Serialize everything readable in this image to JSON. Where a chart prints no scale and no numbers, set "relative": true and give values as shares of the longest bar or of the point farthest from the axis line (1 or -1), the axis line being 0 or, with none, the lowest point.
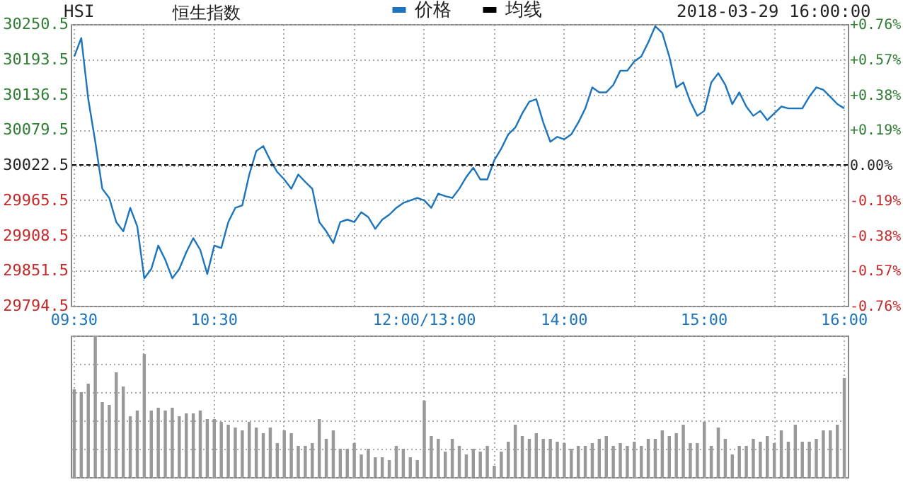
{
  "chart_data": [
    {
      "type": "line",
      "title": "恒生指数",
      "annotations": [
        "HSI",
        "2018-03-29 16:00:00"
      ],
      "categories": [
        "09:30",
        null,
        null,
        null,
        null,
        null,
        null,
        null,
        null,
        null,
        null,
        null,
        null,
        null,
        null,
        null,
        null,
        null,
        null,
        null,
        "10:30",
        null,
        null,
        null,
        null,
        null,
        null,
        null,
        null,
        null,
        null,
        null,
        null,
        null,
        null,
        null,
        null,
        null,
        null,
        null,
        null,
        null,
        null,
        null,
        null,
        null,
        null,
        null,
        null,
        null,
        "12:00/13:00",
        null,
        null,
        null,
        null,
        null,
        null,
        null,
        null,
        null,
        null,
        null,
        null,
        null,
        null,
        null,
        null,
        null,
        null,
        null,
        "14:00",
        null,
        null,
        null,
        null,
        null,
        null,
        null,
        null,
        null,
        null,
        null,
        null,
        null,
        null,
        null,
        null,
        null,
        null,
        null,
        "15:00",
        null,
        null,
        null,
        null,
        null,
        null,
        null,
        null,
        null,
        null,
        null,
        null,
        null,
        null,
        null,
        null,
        null,
        null,
        null,
        "16:00"
      ],
      "series": [
        {
          "name": "价格",
          "color": "#1c75bc",
          "values": [
            30198,
            30228,
            30129,
            30060,
            29984,
            29969,
            29930,
            29915,
            29953,
            29923,
            29839,
            29854,
            29892,
            29869,
            29839,
            29854,
            29881,
            29904,
            29885,
            29846,
            29892,
            29888,
            29930,
            29953,
            29957,
            30007,
            30045,
            30053,
            30030,
            30011,
            29999,
            29984,
            30007,
            29995,
            29984,
            29930,
            29915,
            29896,
            29930,
            29934,
            29930,
            29946,
            29938,
            29919,
            29934,
            29942,
            29953,
            29961,
            29965,
            29969,
            29965,
            29953,
            29976,
            29972,
            29969,
            29984,
            30003,
            30018,
            29999,
            29999,
            30030,
            30049,
            30072,
            30083,
            30106,
            30125,
            30129,
            30091,
            30060,
            30068,
            30064,
            30072,
            30091,
            30114,
            30148,
            30140,
            30140,
            30152,
            30175,
            30175,
            30190,
            30198,
            30221,
            30247,
            30236,
            30198,
            30148,
            30156,
            30125,
            30102,
            30110,
            30156,
            30171,
            30152,
            30121,
            30140,
            30117,
            30102,
            30110,
            30095,
            30106,
            30117,
            30114,
            30114,
            30114,
            30133,
            30148,
            30144,
            30133,
            30121,
            30114
          ]
        },
        {
          "name": "均线",
          "color": "#000000",
          "values": [
            null,
            null,
            null,
            null,
            null,
            null,
            null,
            null,
            null,
            null,
            null,
            null,
            null,
            null,
            null,
            null,
            null,
            null,
            null,
            null,
            null,
            null,
            null,
            null,
            null,
            null,
            null,
            null,
            null,
            null,
            null,
            null,
            null,
            null,
            null,
            null,
            null,
            null,
            null,
            null,
            null,
            null,
            null,
            null,
            null,
            null,
            null,
            null,
            null,
            null,
            null,
            null,
            null,
            null,
            null,
            null,
            null,
            null,
            null,
            null,
            null,
            null,
            null,
            null,
            null,
            null,
            null,
            null,
            null,
            null,
            null,
            null,
            null,
            null,
            null,
            null,
            null,
            null,
            null,
            null,
            null,
            null,
            null,
            null,
            null,
            null,
            null,
            null,
            null,
            null,
            null,
            null,
            null,
            null,
            null,
            null,
            null,
            null,
            null,
            null,
            null,
            null,
            null,
            null,
            null,
            null,
            null,
            null,
            null,
            null,
            null
          ]
        }
      ],
      "ylim": [
        29794.5,
        30250.5
      ],
      "yticks": [
        {
          "value": 29794.5,
          "label": "29794.5"
        },
        {
          "value": 29851.5,
          "label": "29851.5"
        },
        {
          "value": 29908.5,
          "label": "29908.5"
        },
        {
          "value": 29965.5,
          "label": "29965.5"
        },
        {
          "value": 30022.5,
          "label": "30022.5"
        },
        {
          "value": 30079.5,
          "label": "30079.5"
        },
        {
          "value": 30136.5,
          "label": "30136.5"
        },
        {
          "value": 30193.5,
          "label": "30193.5"
        },
        {
          "value": 30250.5,
          "label": "30250.5"
        }
      ],
      "y2lim": [
        -0.76,
        0.76
      ],
      "y2ticks": [
        {
          "value": -0.76,
          "label": "-0.76%"
        },
        {
          "value": -0.57,
          "label": "-0.57%"
        },
        {
          "value": -0.38,
          "label": "-0.38%"
        },
        {
          "value": -0.19,
          "label": "-0.19%"
        },
        {
          "value": 0,
          "label": "0.00%"
        },
        {
          "value": 0.19,
          "label": "+0.19%"
        },
        {
          "value": 0.38,
          "label": "+0.38%"
        },
        {
          "value": 0.57,
          "label": "+0.57%"
        },
        {
          "value": 0.76,
          "label": "+0.76%"
        }
      ],
      "ref_lines": [
        {
          "axis": "y2",
          "value": 0,
          "color": "#000000",
          "line_style": "dashed"
        }
      ],
      "grid": true,
      "legend": "top"
    },
    {
      "type": "bar",
      "relative": true,
      "color": "#999999",
      "grid": true,
      "categories": [
        null,
        null,
        null,
        null,
        null,
        null,
        null,
        null,
        null,
        null,
        null,
        null,
        null,
        null,
        null,
        null,
        null,
        null,
        null,
        null,
        null,
        null,
        null,
        null,
        null,
        null,
        null,
        null,
        null,
        null,
        null,
        null,
        null,
        null,
        null,
        null,
        null,
        null,
        null,
        null,
        null,
        null,
        null,
        null,
        null,
        null,
        null,
        null,
        null,
        null,
        null,
        null,
        null,
        null,
        null,
        null,
        null,
        null,
        null,
        null,
        null,
        null,
        null,
        null,
        null,
        null,
        null,
        null,
        null,
        null,
        null,
        null,
        null,
        null,
        null,
        null,
        null,
        null,
        null,
        null,
        null,
        null,
        null,
        null,
        null,
        null,
        null,
        null,
        null,
        null,
        null,
        null,
        null,
        null,
        null,
        null,
        null,
        null,
        null,
        null,
        null,
        null,
        null,
        null,
        null,
        null,
        null,
        null,
        null,
        null,
        null
      ],
      "values": [
        0.62,
        0.6,
        0.66,
        1.0,
        0.53,
        0.51,
        0.74,
        0.64,
        0.43,
        0.47,
        0.87,
        0.47,
        0.49,
        0.47,
        0.49,
        0.43,
        0.45,
        0.45,
        0.47,
        0.41,
        0.41,
        0.39,
        0.37,
        0.35,
        0.33,
        0.39,
        0.35,
        0.31,
        0.35,
        0.24,
        0.33,
        0.31,
        0.22,
        0.22,
        0.24,
        0.41,
        0.27,
        0.33,
        0.2,
        0.2,
        0.24,
        0.16,
        0.2,
        0.14,
        0.14,
        0.12,
        0.22,
        0.2,
        0.14,
        0.12,
        0.54,
        0.29,
        0.27,
        0.18,
        0.27,
        0.22,
        0.16,
        0.2,
        0.18,
        0.22,
        0.08,
        0.18,
        0.25,
        0.37,
        0.29,
        0.27,
        0.31,
        0.27,
        0.27,
        0.25,
        0.24,
        0.2,
        0.22,
        0.22,
        0.24,
        0.27,
        0.29,
        0.22,
        0.24,
        0.22,
        0.25,
        0.22,
        0.27,
        0.27,
        0.33,
        0.29,
        0.31,
        0.37,
        0.24,
        0.24,
        0.39,
        0.22,
        0.35,
        0.27,
        0.16,
        0.22,
        0.22,
        0.27,
        0.25,
        0.29,
        0.24,
        0.33,
        0.25,
        0.37,
        0.25,
        0.25,
        0.27,
        0.33,
        0.33,
        0.37,
        0.7
      ]
    }
  ]
}
